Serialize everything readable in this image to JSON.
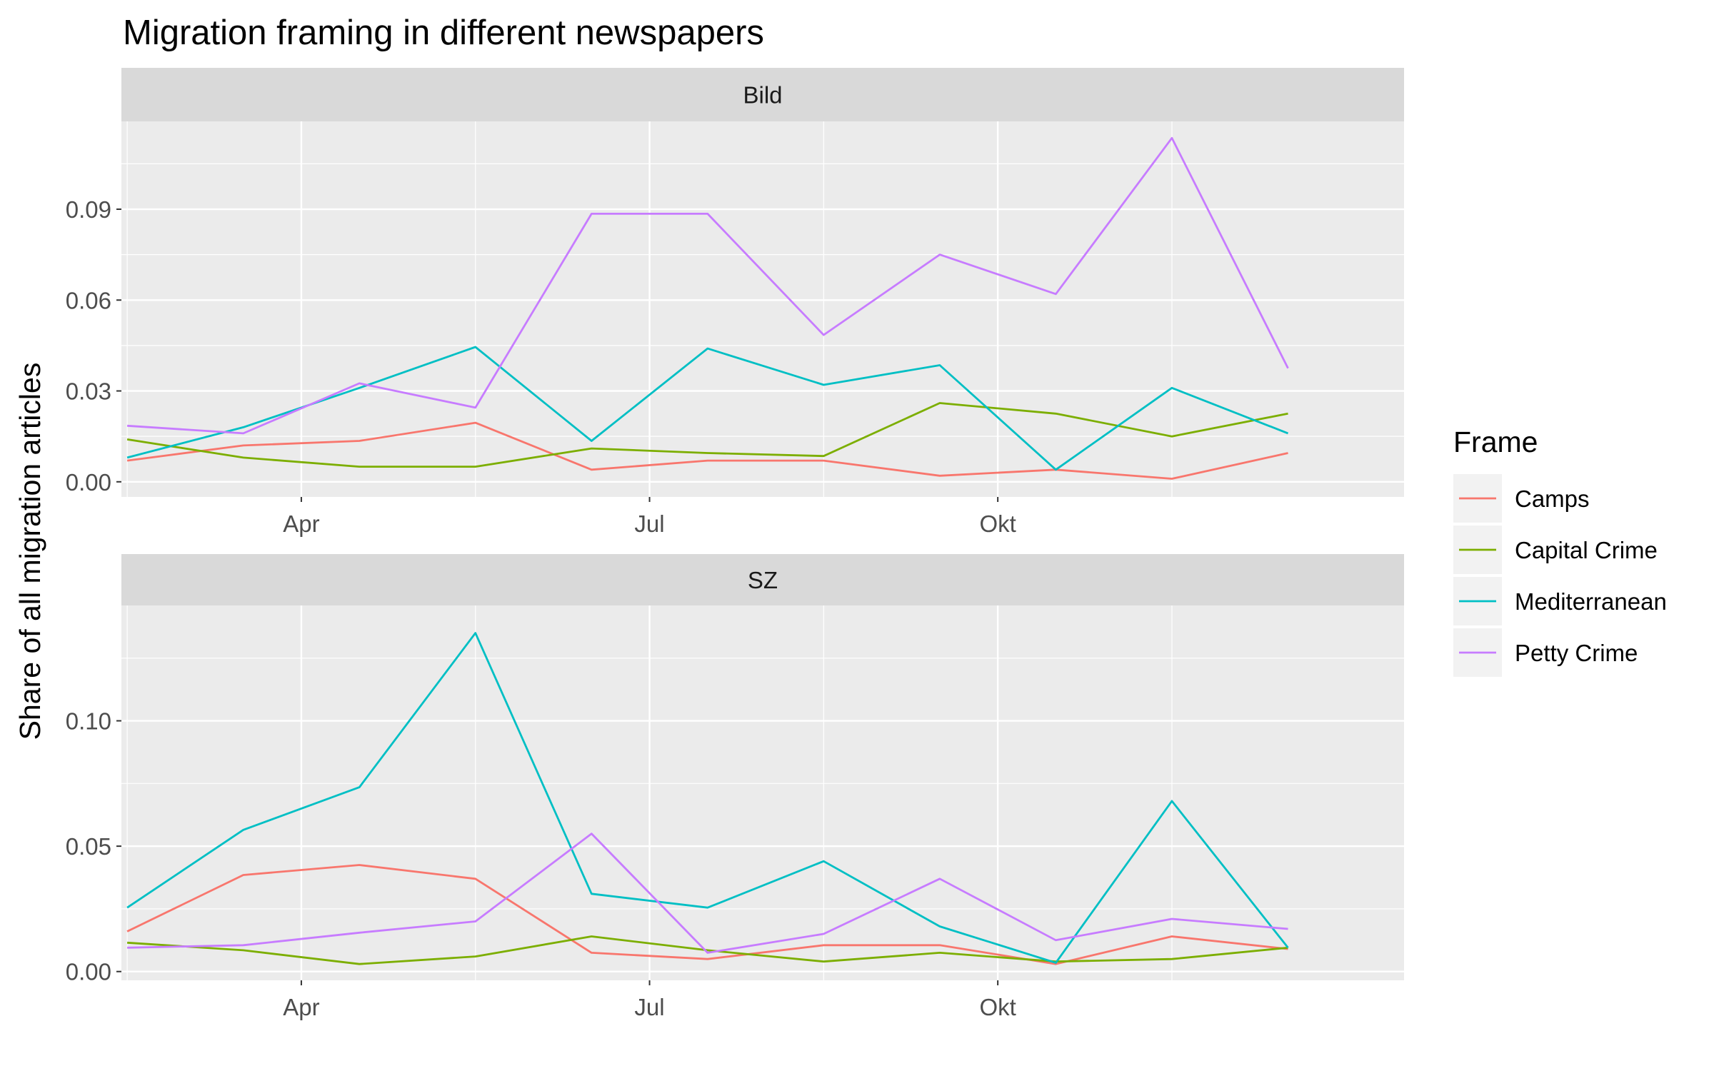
{
  "chart_data": {
    "type": "line",
    "title": "Migration framing in different newspapers",
    "xlabel": "",
    "ylabel": "Share of all migration articles",
    "x_tick_labels": [
      "Apr",
      "Jul",
      "Okt"
    ],
    "x_tick_positions": [
      3,
      6,
      9
    ],
    "x": [
      1.5,
      2.5,
      3.5,
      4.5,
      5.5,
      6.5,
      7.5,
      8.5,
      9.5,
      10.5,
      11.5
    ],
    "xlim": [
      1.45,
      12.5
    ],
    "legend": {
      "title": "Frame",
      "position": "right"
    },
    "colors": {
      "Camps": "#F8766D",
      "Capital Crime": "#7CAE00",
      "Mediterranean": "#00BFC4",
      "Petty Crime": "#C77CFF"
    },
    "grid": true,
    "panels": [
      {
        "strip": "Bild",
        "ylim": [
          -0.005,
          0.119
        ],
        "y_ticks": [
          0.0,
          0.03,
          0.06,
          0.09
        ],
        "y_tick_labels": [
          "0.00",
          "0.03",
          "0.06",
          "0.09"
        ],
        "series": [
          {
            "name": "Camps",
            "values": [
              0.007,
              0.012,
              0.0135,
              0.0195,
              0.004,
              0.007,
              0.007,
              0.002,
              0.004,
              0.001,
              0.0095
            ]
          },
          {
            "name": "Capital Crime",
            "values": [
              0.014,
              0.008,
              0.005,
              0.005,
              0.011,
              0.0095,
              0.0085,
              0.026,
              0.0225,
              0.015,
              0.0225
            ]
          },
          {
            "name": "Mediterranean",
            "values": [
              0.008,
              0.018,
              0.031,
              0.0445,
              0.0135,
              0.044,
              0.032,
              0.0385,
              0.004,
              0.031,
              0.016
            ]
          },
          {
            "name": "Petty Crime",
            "values": [
              0.0185,
              0.016,
              0.0325,
              0.0245,
              0.0885,
              0.0885,
              0.0485,
              0.075,
              0.062,
              0.1135,
              0.0375
            ]
          }
        ]
      },
      {
        "strip": "SZ",
        "ylim": [
          -0.0035,
          0.146
        ],
        "y_ticks": [
          0.0,
          0.05,
          0.1
        ],
        "y_tick_labels": [
          "0.00",
          "0.05",
          "0.10"
        ],
        "series": [
          {
            "name": "Camps",
            "values": [
              0.016,
              0.0385,
              0.0425,
              0.037,
              0.0075,
              0.005,
              0.0105,
              0.0105,
              0.003,
              0.014,
              0.009
            ]
          },
          {
            "name": "Capital Crime",
            "values": [
              0.0115,
              0.0085,
              0.003,
              0.006,
              0.014,
              0.0085,
              0.004,
              0.0075,
              0.004,
              0.005,
              0.0095
            ]
          },
          {
            "name": "Mediterranean",
            "values": [
              0.0255,
              0.0565,
              0.0735,
              0.135,
              0.031,
              0.0255,
              0.044,
              0.018,
              0.0035,
              0.068,
              0.0095
            ]
          },
          {
            "name": "Petty Crime",
            "values": [
              0.0095,
              0.0105,
              0.0155,
              0.02,
              0.055,
              0.0075,
              0.015,
              0.037,
              0.0125,
              0.021,
              0.017
            ]
          }
        ]
      }
    ]
  }
}
